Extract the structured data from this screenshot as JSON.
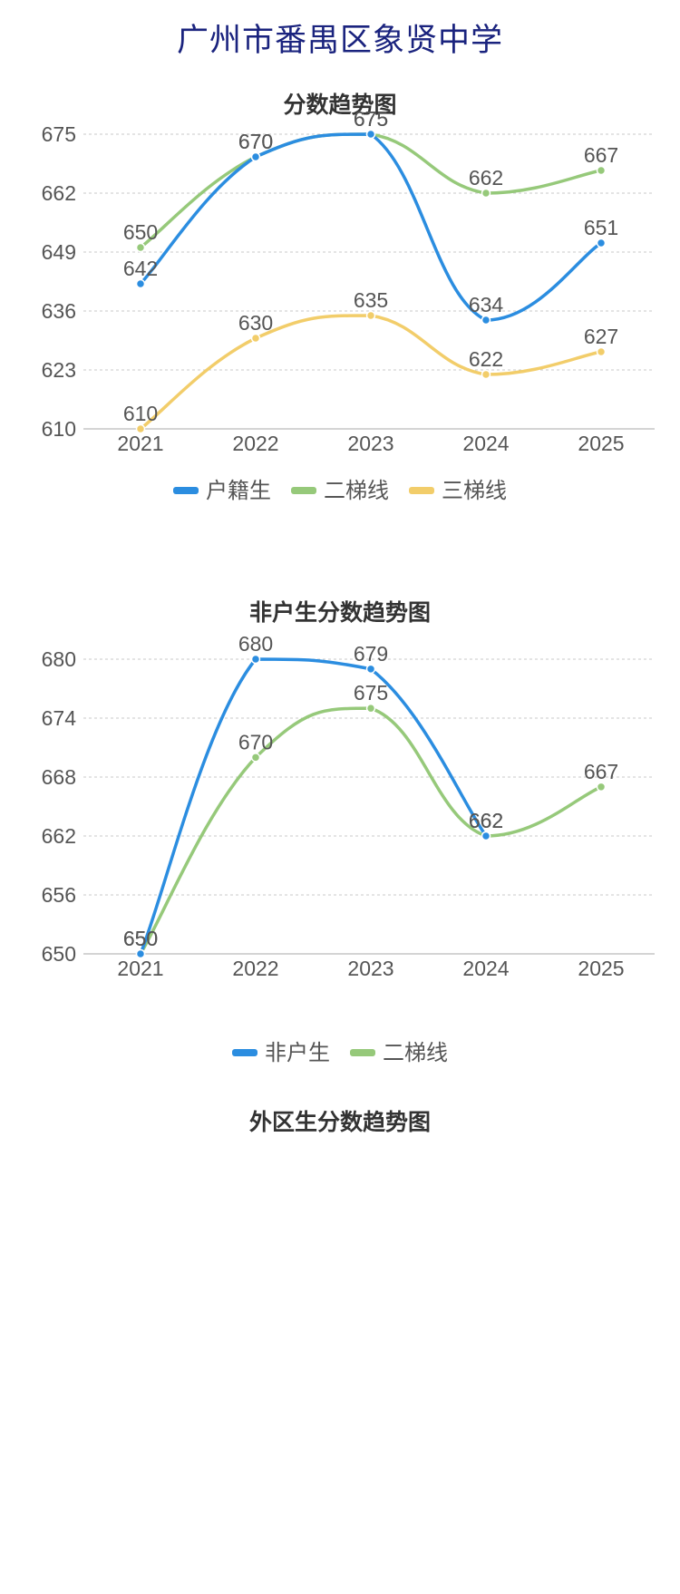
{
  "page": {
    "title": "广州市番禺区象贤中学"
  },
  "chart_data": [
    {
      "type": "line",
      "title": "分数趋势图",
      "categories": [
        "2021",
        "2022",
        "2023",
        "2024",
        "2025"
      ],
      "yticks": [
        610,
        623,
        636,
        649,
        662,
        675
      ],
      "ylim": [
        610,
        675
      ],
      "grid": true,
      "smooth": true,
      "legend_position": "bottom",
      "series": [
        {
          "name": "户籍生",
          "color": "#2b8de0",
          "values": [
            642,
            670,
            675,
            634,
            651
          ]
        },
        {
          "name": "二梯线",
          "color": "#96c97a",
          "values": [
            650,
            670,
            675,
            662,
            667
          ]
        },
        {
          "name": "三梯线",
          "color": "#f2cd6a",
          "values": [
            610,
            630,
            635,
            622,
            627
          ]
        }
      ]
    },
    {
      "type": "line",
      "title": "非户生分数趋势图",
      "categories": [
        "2021",
        "2022",
        "2023",
        "2024",
        "2025"
      ],
      "yticks": [
        650,
        656,
        662,
        668,
        674,
        680
      ],
      "ylim": [
        650,
        680
      ],
      "grid": true,
      "smooth": true,
      "legend_position": "bottom",
      "series": [
        {
          "name": "非户生",
          "color": "#2b8de0",
          "values": [
            650,
            680,
            679,
            662,
            null
          ]
        },
        {
          "name": "二梯线",
          "color": "#96c97a",
          "values": [
            650,
            670,
            675,
            662,
            667
          ]
        }
      ]
    },
    {
      "type": "line",
      "title": "外区生分数趋势图"
    }
  ]
}
